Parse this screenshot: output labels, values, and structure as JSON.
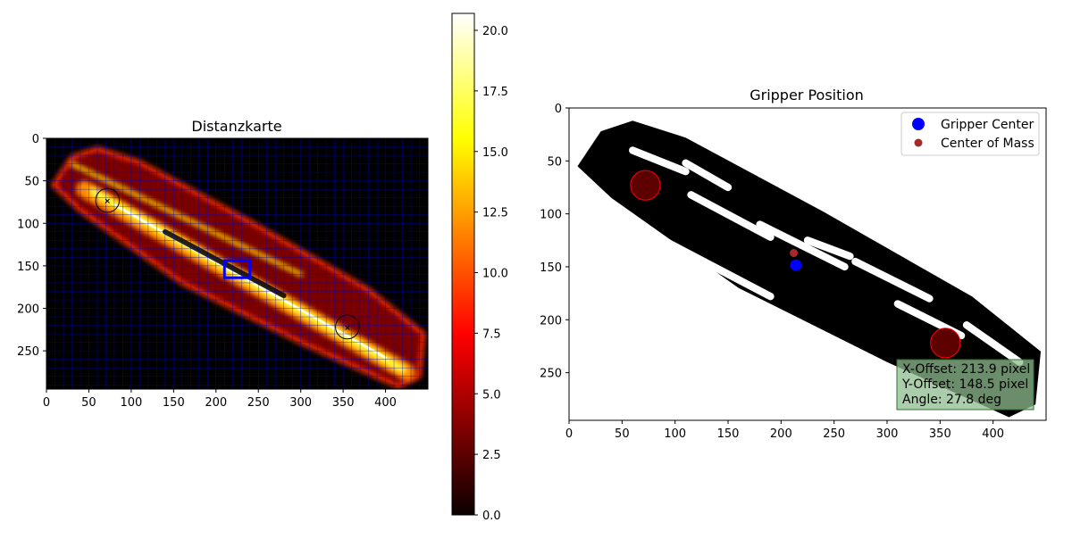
{
  "chart_data": [
    {
      "type": "heatmap",
      "title": "Distanzkarte",
      "xlabel": "",
      "ylabel": "",
      "xlim": [
        0,
        450
      ],
      "ylim": [
        295,
        0
      ],
      "x_ticks": [
        0,
        50,
        100,
        150,
        200,
        250,
        300,
        350,
        400
      ],
      "y_ticks": [
        0,
        50,
        100,
        150,
        200,
        250
      ],
      "colormap": "hot",
      "grid": true,
      "grid_step": 10,
      "grid_color": "#0000cc",
      "colorbar": {
        "range": [
          0,
          20.7
        ],
        "ticks": [
          "0.0",
          "2.5",
          "5.0",
          "7.5",
          "10.0",
          "12.5",
          "15.0",
          "17.5",
          "20.0"
        ]
      },
      "grip_circles": [
        {
          "x": 72,
          "y": 73,
          "radius": 14
        },
        {
          "x": 355,
          "y": 222,
          "radius": 14
        }
      ],
      "gripper_box": {
        "x": 210,
        "y": 144,
        "width": 30,
        "height": 20,
        "color": "#0000ff"
      }
    },
    {
      "type": "scatter",
      "title": "Gripper Position",
      "xlabel": "",
      "ylabel": "",
      "xlim": [
        0,
        450
      ],
      "ylim": [
        295,
        0
      ],
      "x_ticks": [
        0,
        50,
        100,
        150,
        200,
        250,
        300,
        350,
        400
      ],
      "y_ticks": [
        0,
        50,
        100,
        150,
        200,
        250
      ],
      "series": [
        {
          "name": "Gripper Center",
          "color": "#0000ff",
          "points": [
            {
              "x": 213.9,
              "y": 148.5
            }
          ]
        },
        {
          "name": "Center of Mass",
          "color": "#a52a2a",
          "points": [
            {
              "x": 212,
              "y": 137
            }
          ]
        }
      ],
      "grip_circles": [
        {
          "x": 72,
          "y": 73,
          "radius": 14,
          "fill": "#5c0000",
          "stroke": "#ff0000"
        },
        {
          "x": 355,
          "y": 222,
          "radius": 14,
          "fill": "#5c0000",
          "stroke": "#ff0000"
        }
      ],
      "legend_position": "top-right",
      "annotation": {
        "lines": [
          "X-Offset: 213.9 pixel",
          "Y-Offset: 148.5 pixel",
          "Angle: 27.8 deg"
        ],
        "background": "#8fbc8f"
      }
    }
  ]
}
